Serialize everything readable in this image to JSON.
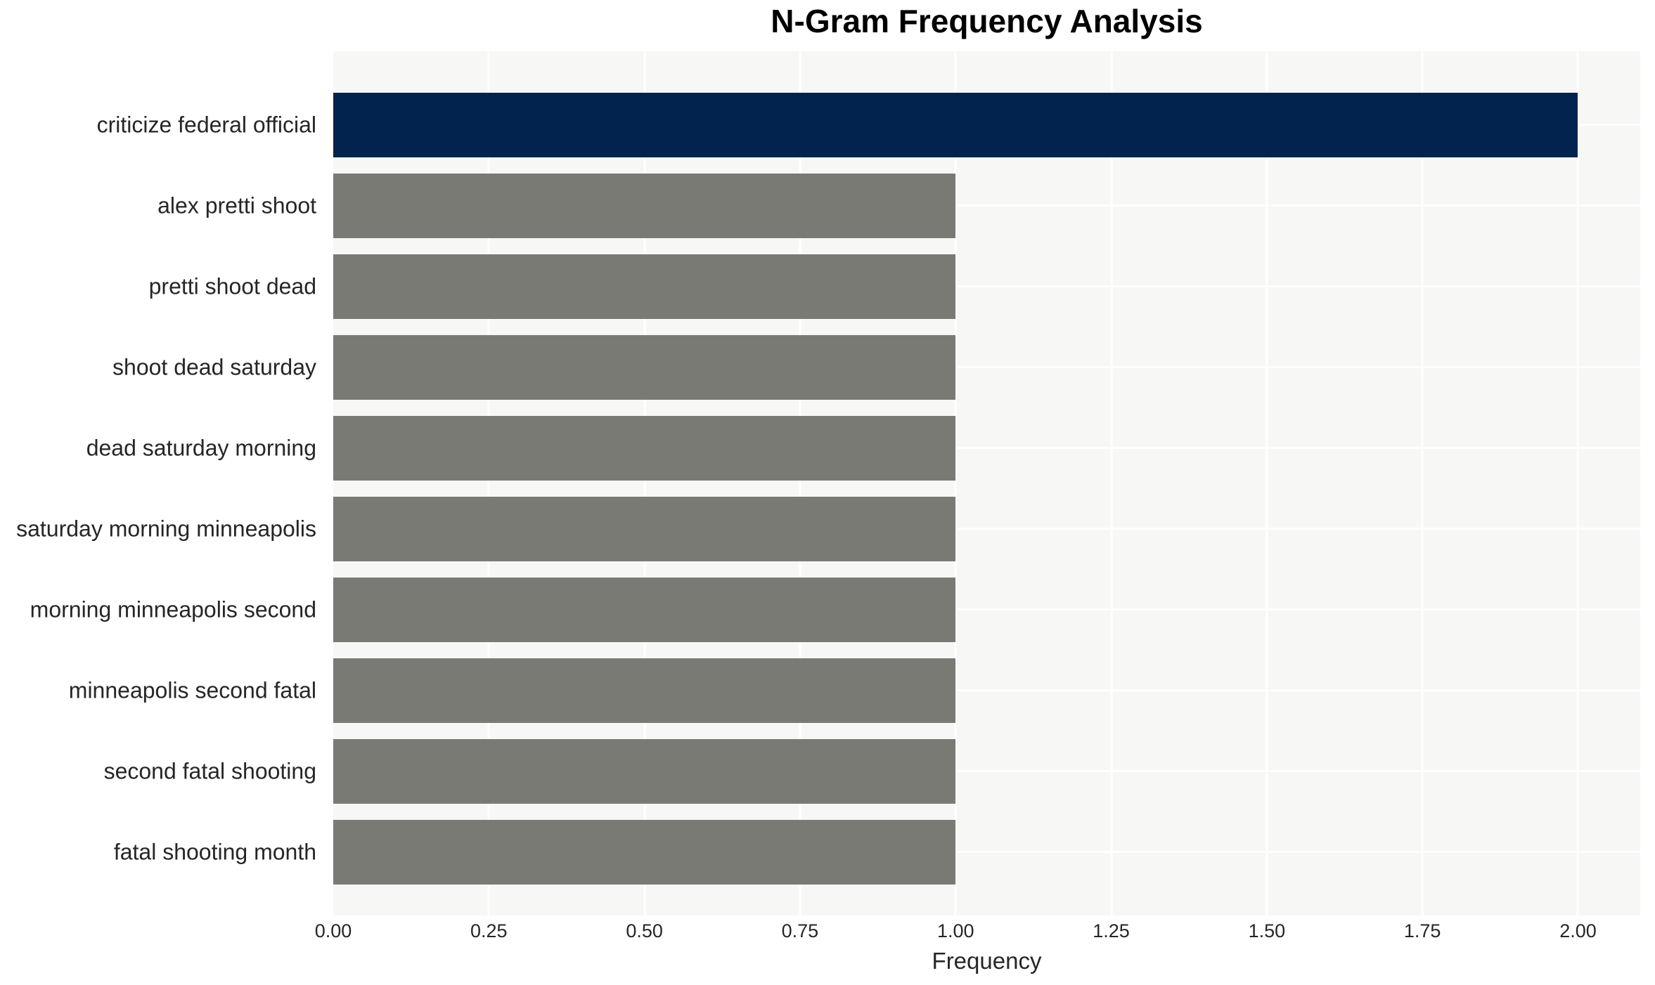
{
  "chart_data": {
    "type": "bar",
    "orientation": "horizontal",
    "title": "N-Gram Frequency Analysis",
    "xlabel": "Frequency",
    "ylabel": "",
    "categories": [
      "criticize federal official",
      "alex pretti shoot",
      "pretti shoot dead",
      "shoot dead saturday",
      "dead saturday morning",
      "saturday morning minneapolis",
      "morning minneapolis second",
      "minneapolis second fatal",
      "second fatal shooting",
      "fatal shooting month"
    ],
    "values": [
      2,
      1,
      1,
      1,
      1,
      1,
      1,
      1,
      1,
      1
    ],
    "xlim": [
      0,
      2.1
    ],
    "x_ticks": [
      {
        "value": 0.0,
        "label": "0.00"
      },
      {
        "value": 0.25,
        "label": "0.25"
      },
      {
        "value": 0.5,
        "label": "0.50"
      },
      {
        "value": 0.75,
        "label": "0.75"
      },
      {
        "value": 1.0,
        "label": "1.00"
      },
      {
        "value": 1.25,
        "label": "1.25"
      },
      {
        "value": 1.5,
        "label": "1.50"
      },
      {
        "value": 1.75,
        "label": "1.75"
      },
      {
        "value": 2.0,
        "label": "2.00"
      }
    ],
    "grid": true,
    "legend_position": "none",
    "colors": {
      "highlight_bar": "#02234d",
      "default_bar": "#7a7a75",
      "highlight_index": 0,
      "plot_background": "#f7f7f6",
      "gridline": "#ffffff",
      "axis_text": "#262626",
      "title_text": "#000000"
    }
  }
}
